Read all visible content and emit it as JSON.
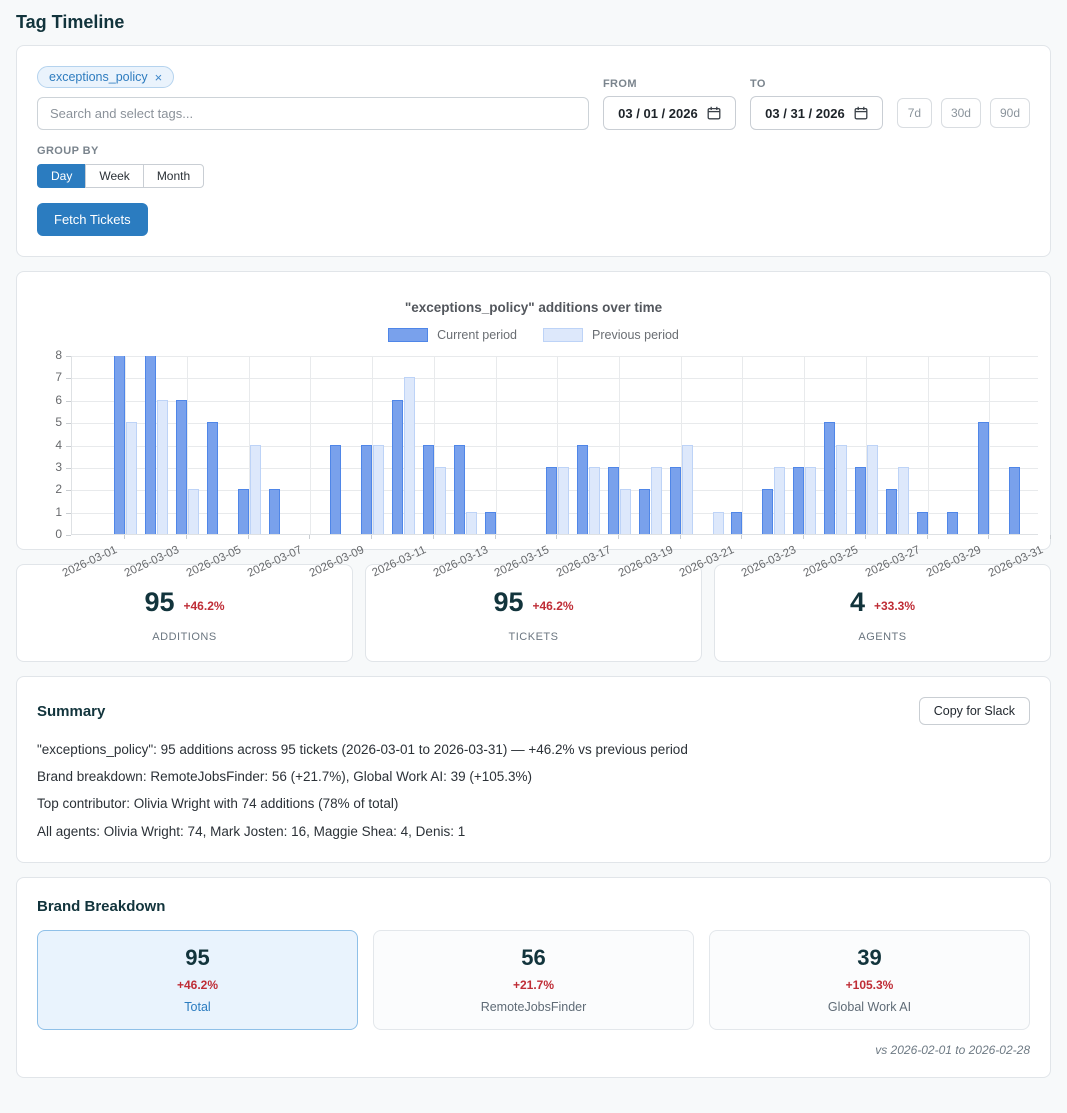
{
  "page": {
    "title": "Tag Timeline"
  },
  "colors": {
    "accent_blue": "#2b7cc0",
    "dark_teal": "#12343c",
    "delta_red": "#bf2d36",
    "bar_current_fill": "#79a1ec",
    "bar_current_border": "#4f86e8",
    "bar_previous_fill": "#dde8fb",
    "bar_previous_border": "#bdd3f7",
    "grid_line": "#e8eaec"
  },
  "filters": {
    "selected_tag": {
      "label": "exceptions_policy",
      "remove_icon": "×"
    },
    "search_placeholder": "Search and select tags...",
    "from": {
      "label": "FROM",
      "value": "03 / 01 / 2026"
    },
    "to": {
      "label": "TO",
      "value": "03 / 31 / 2026"
    },
    "quick_ranges": [
      "7d",
      "30d",
      "90d"
    ],
    "group_by": {
      "label": "GROUP BY",
      "options": [
        "Day",
        "Week",
        "Month"
      ],
      "active": "Day"
    },
    "fetch_button": "Fetch Tickets"
  },
  "chart_data": {
    "type": "bar",
    "title": "\"exceptions_policy\" additions over time",
    "legend_position": "top",
    "grid": true,
    "ylim": [
      0,
      8
    ],
    "yticks": [
      0,
      1,
      2,
      3,
      4,
      5,
      6,
      7,
      8
    ],
    "x": [
      "2026-03-01",
      "2026-03-02",
      "2026-03-03",
      "2026-03-04",
      "2026-03-05",
      "2026-03-06",
      "2026-03-07",
      "2026-03-08",
      "2026-03-09",
      "2026-03-10",
      "2026-03-11",
      "2026-03-12",
      "2026-03-13",
      "2026-03-14",
      "2026-03-15",
      "2026-03-16",
      "2026-03-17",
      "2026-03-18",
      "2026-03-19",
      "2026-03-20",
      "2026-03-21",
      "2026-03-22",
      "2026-03-23",
      "2026-03-24",
      "2026-03-25",
      "2026-03-26",
      "2026-03-27",
      "2026-03-28",
      "2026-03-29",
      "2026-03-30",
      "2026-03-31"
    ],
    "x_tick_labels": [
      "2026-03-01",
      "2026-03-03",
      "2026-03-05",
      "2026-03-07",
      "2026-03-09",
      "2026-03-11",
      "2026-03-13",
      "2026-03-15",
      "2026-03-17",
      "2026-03-19",
      "2026-03-21",
      "2026-03-23",
      "2026-03-25",
      "2026-03-27",
      "2026-03-29",
      "2026-03-31"
    ],
    "series": [
      {
        "name": "Current period",
        "values": [
          8,
          8,
          6,
          5,
          2,
          2,
          0,
          4,
          4,
          6,
          4,
          4,
          1,
          0,
          3,
          4,
          3,
          2,
          3,
          0,
          1,
          2,
          3,
          5,
          3,
          2,
          1,
          1,
          5,
          3,
          0
        ]
      },
      {
        "name": "Previous period",
        "values": [
          5,
          6,
          2,
          0,
          4,
          0,
          0,
          0,
          4,
          7,
          3,
          1,
          0,
          0,
          3,
          3,
          2,
          3,
          4,
          1,
          0,
          3,
          3,
          4,
          4,
          3,
          0,
          0,
          0,
          0,
          0
        ]
      }
    ]
  },
  "stats": [
    {
      "value": "95",
      "delta": "+46.2%",
      "label": "ADDITIONS"
    },
    {
      "value": "95",
      "delta": "+46.2%",
      "label": "TICKETS"
    },
    {
      "value": "4",
      "delta": "+33.3%",
      "label": "AGENTS"
    }
  ],
  "summary": {
    "title": "Summary",
    "copy_button": "Copy for Slack",
    "lines": [
      "\"exceptions_policy\": 95 additions across 95 tickets (2026-03-01 to 2026-03-31) — +46.2% vs previous period",
      "Brand breakdown: RemoteJobsFinder: 56 (+21.7%), Global Work AI: 39 (+105.3%)",
      "Top contributor: Olivia Wright with 74 additions (78% of total)",
      "All agents: Olivia Wright: 74, Mark Josten: 16, Maggie Shea: 4, Denis: 1"
    ]
  },
  "brand_breakdown": {
    "title": "Brand Breakdown",
    "cards": [
      {
        "value": "95",
        "delta": "+46.2%",
        "label": "Total",
        "selected": true
      },
      {
        "value": "56",
        "delta": "+21.7%",
        "label": "RemoteJobsFinder",
        "selected": false
      },
      {
        "value": "39",
        "delta": "+105.3%",
        "label": "Global Work AI",
        "selected": false
      }
    ],
    "footnote": "vs 2026-02-01 to 2026-02-28"
  }
}
